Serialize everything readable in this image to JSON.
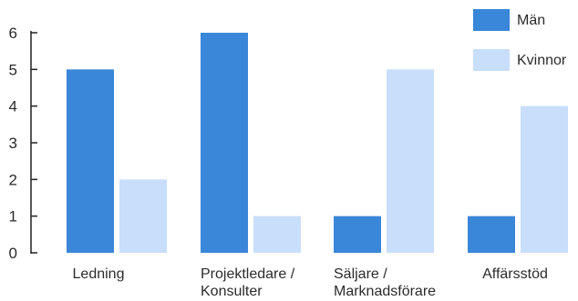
{
  "chart_data": {
    "type": "bar",
    "categories": [
      [
        "Ledning"
      ],
      [
        "Projektledare /",
        "Konsulter"
      ],
      [
        "Säljare /",
        "Marknadsförare"
      ],
      [
        "Affärsstöd"
      ]
    ],
    "series": [
      {
        "name": "Män",
        "color": "#3a86d8",
        "values": [
          5,
          6,
          1,
          1
        ]
      },
      {
        "name": "Kvinnor",
        "color": "#c8defa",
        "values": [
          2,
          1,
          5,
          4
        ]
      }
    ],
    "yticks": [
      "0",
      "1",
      "2",
      "3",
      "4",
      "5",
      "6"
    ],
    "ylim": [
      0,
      6
    ],
    "legend_position": "top-right",
    "grid": false
  }
}
